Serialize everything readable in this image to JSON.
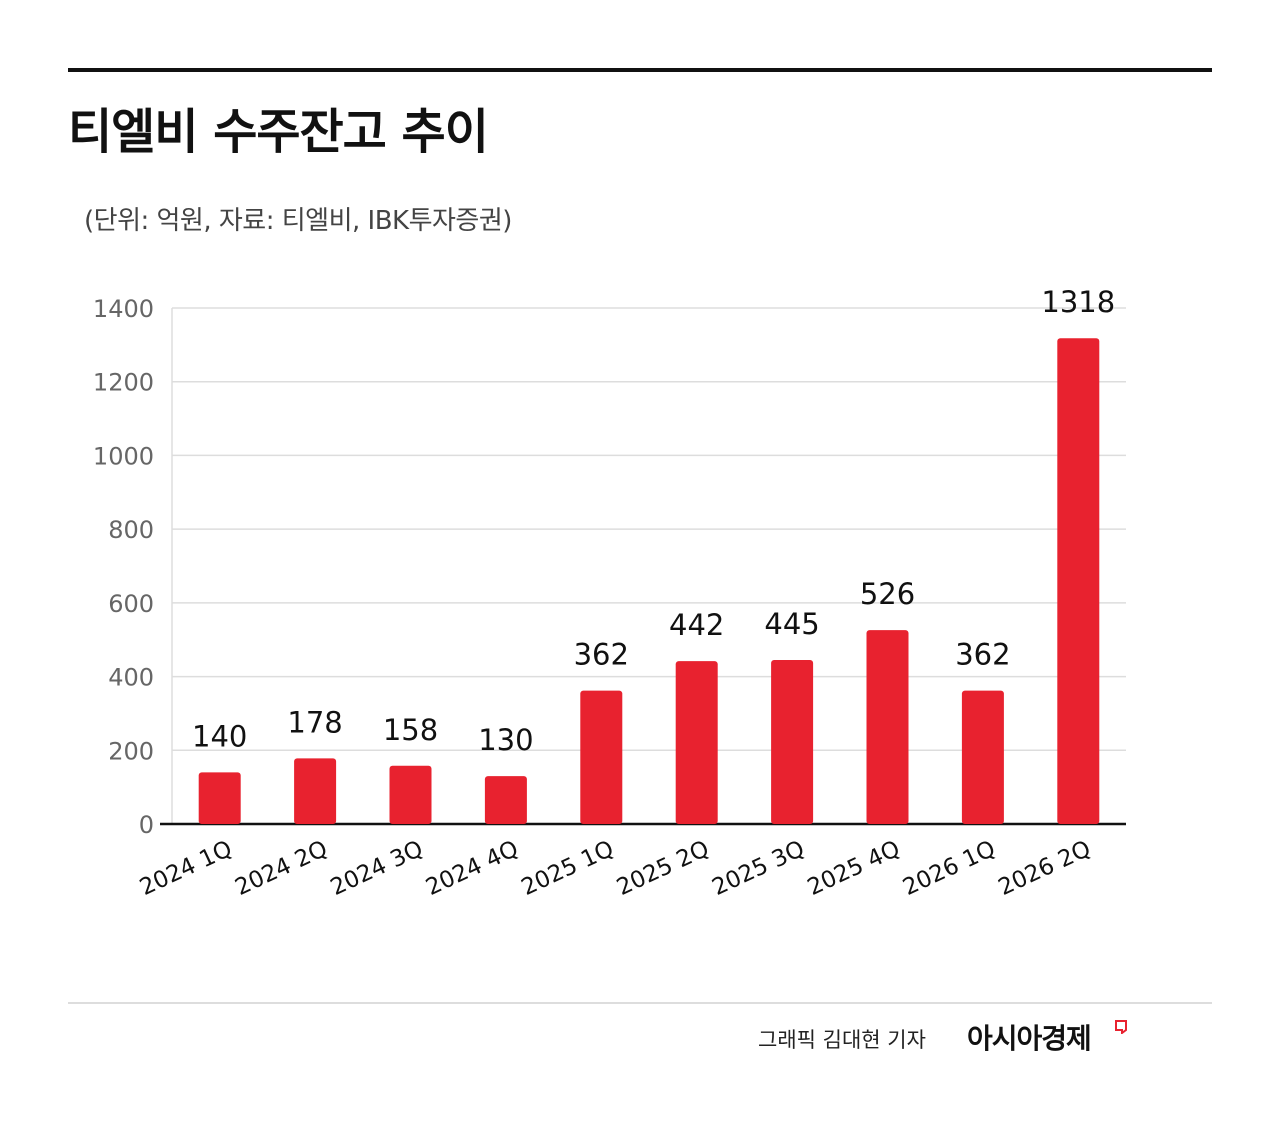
{
  "title": "티엘비 수주잔고 추이",
  "subtitle": "(단위: 억원, 자료: 티엘비, IBK투자증권)",
  "credit": "그래픽  김대현 기자",
  "logo_text": "아시아경제",
  "colors": {
    "bar": "#e8222f",
    "grid": "#dddddd",
    "axis": "#111111",
    "text": "#111111",
    "tick": "#666666"
  },
  "chart_data": {
    "type": "bar",
    "title": "티엘비 수주잔고 추이",
    "xlabel": "",
    "ylabel": "",
    "categories": [
      "2024 1Q",
      "2024 2Q",
      "2024 3Q",
      "2024 4Q",
      "2025 1Q",
      "2025 2Q",
      "2025 3Q",
      "2025 4Q",
      "2026 1Q",
      "2026 2Q"
    ],
    "values": [
      140,
      178,
      158,
      130,
      362,
      442,
      445,
      526,
      362,
      1318
    ],
    "ylim": [
      0,
      1400
    ],
    "yticks": [
      0,
      200,
      400,
      600,
      800,
      1000,
      1200,
      1400
    ],
    "grid": true,
    "legend": "none"
  }
}
